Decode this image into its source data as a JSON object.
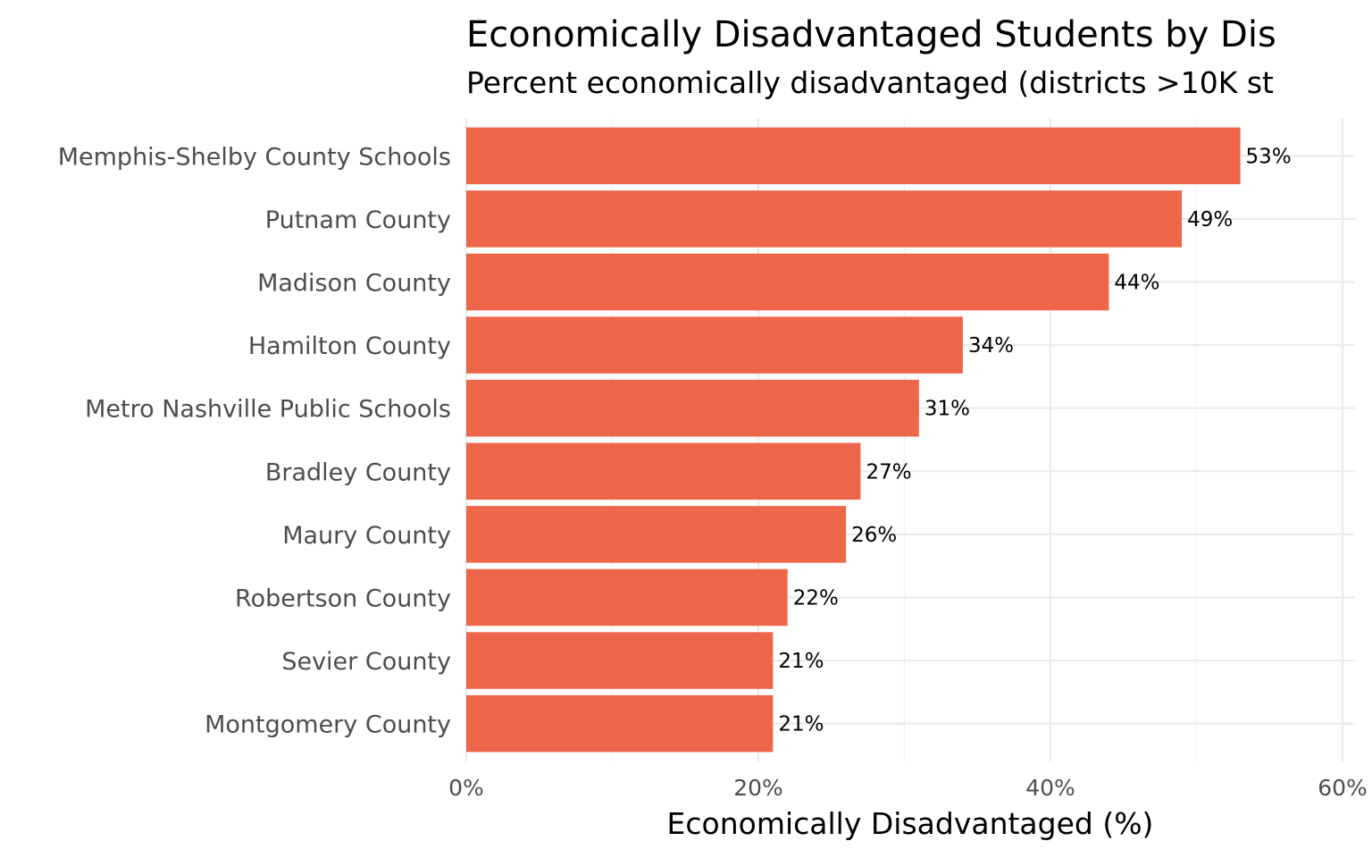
{
  "chart_data": {
    "type": "bar",
    "orientation": "horizontal",
    "title": "Economically Disadvantaged Students by Dis",
    "subtitle": "Percent economically disadvantaged (districts >10K st",
    "xlabel": "Economically Disadvantaged (%)",
    "ylabel": "",
    "xlim": [
      0,
      60
    ],
    "x_ticks": [
      0,
      20,
      40,
      60
    ],
    "x_tick_labels": [
      "0%",
      "20%",
      "40%",
      "60%"
    ],
    "grid": true,
    "bar_color": "#EE6649",
    "categories": [
      "Memphis-Shelby County Schools",
      "Putnam County",
      "Madison County",
      "Hamilton County",
      "Metro Nashville Public Schools",
      "Bradley County",
      "Maury County",
      "Robertson County",
      "Sevier County",
      "Montgomery County"
    ],
    "values": [
      53,
      49,
      44,
      34,
      31,
      27,
      26,
      22,
      21,
      21
    ],
    "data_labels": [
      "53%",
      "49%",
      "44%",
      "34%",
      "31%",
      "27%",
      "26%",
      "22%",
      "21%",
      "21%"
    ]
  }
}
